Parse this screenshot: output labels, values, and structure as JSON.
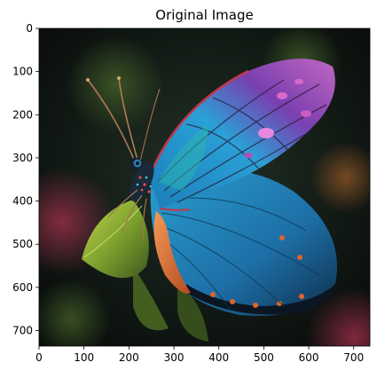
{
  "figure": {
    "title": "Original Image",
    "image_description_name": "butterfly-photo",
    "colors": {
      "background_dark": "#0d1411",
      "wing_blue": "#1e8fc9",
      "wing_purple": "#8a3fb3",
      "wing_pink": "#d25ab8",
      "leaf_green": "#8fb43a",
      "body_orange": "#e07b3a",
      "axis": "#000000"
    }
  },
  "chart_data": {
    "type": "image",
    "title": "Original Image",
    "xlabel": "",
    "ylabel": "",
    "xlim": [
      0,
      736
    ],
    "ylim": [
      736,
      0
    ],
    "x_ticks": [
      0,
      100,
      200,
      300,
      400,
      500,
      600,
      700
    ],
    "y_ticks": [
      0,
      100,
      200,
      300,
      400,
      500,
      600,
      700
    ],
    "grid": false
  }
}
